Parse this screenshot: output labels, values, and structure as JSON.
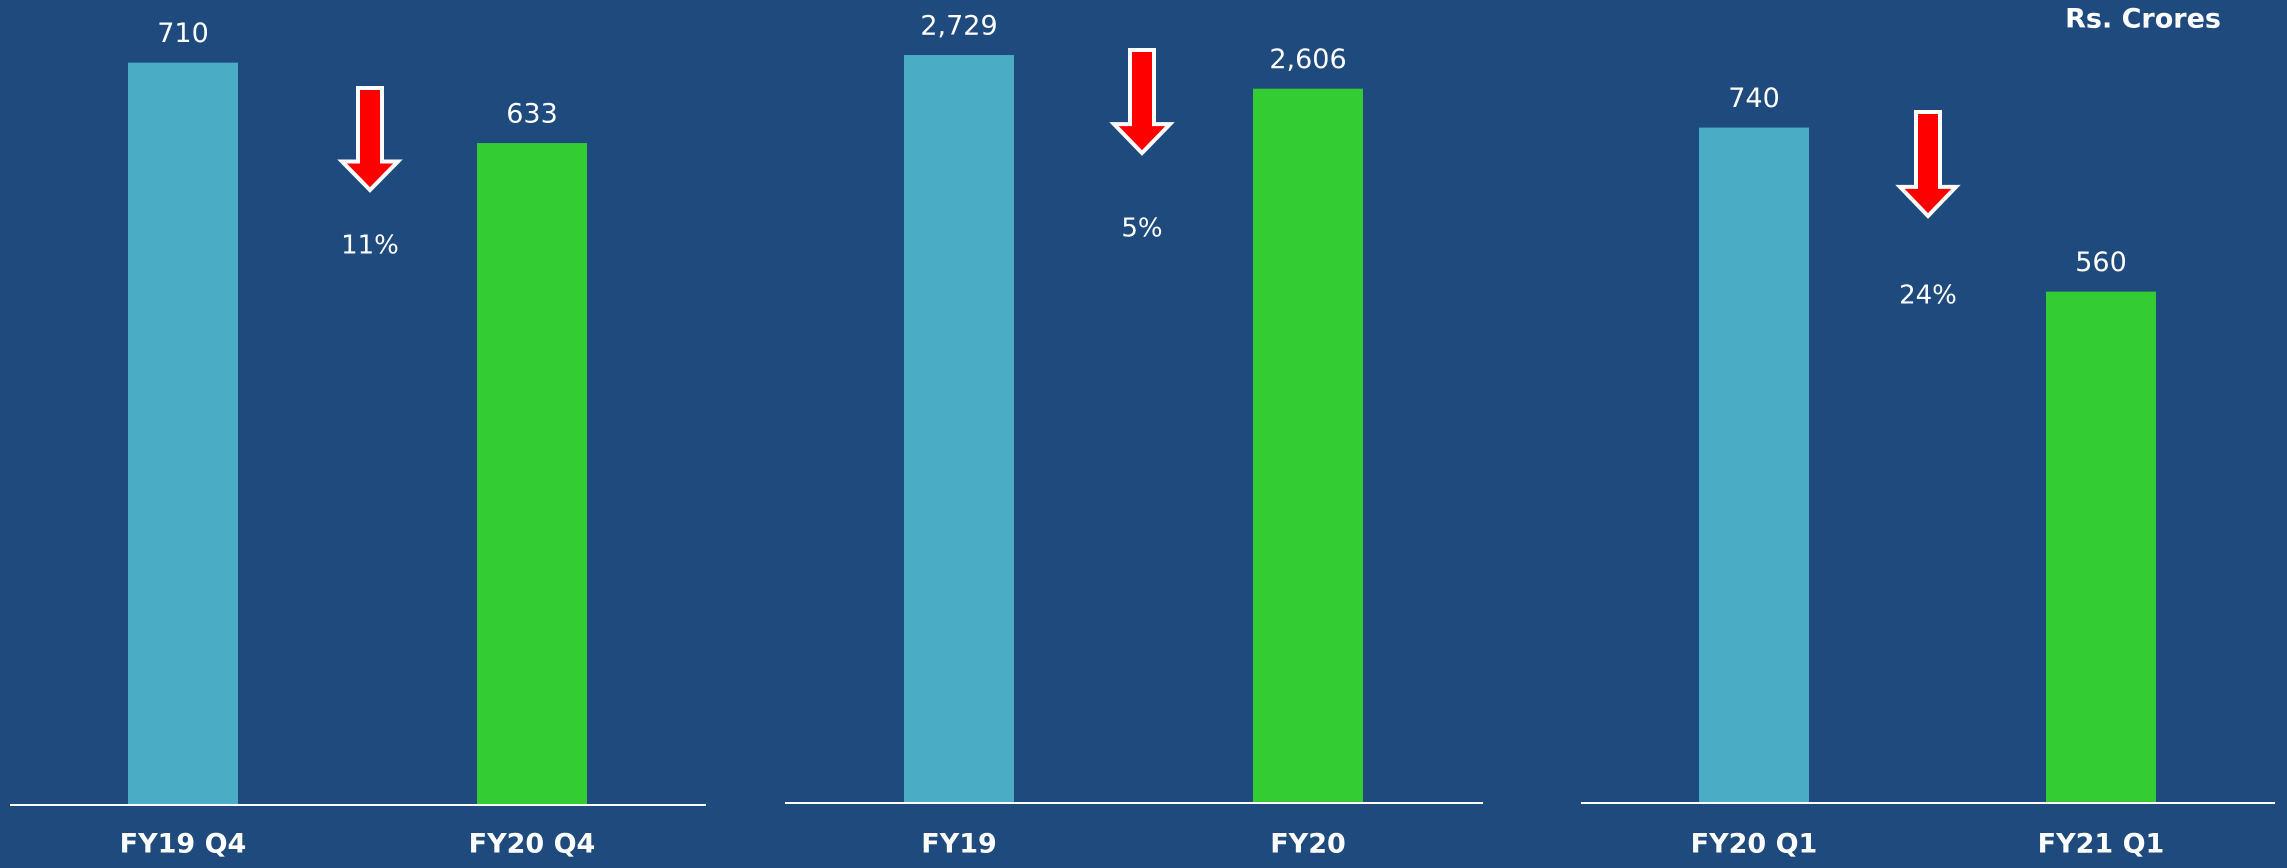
{
  "unit": "Rs. Crores",
  "chart_data": [
    {
      "type": "bar",
      "categories": [
        "FY19 Q4",
        "FY20 Q4"
      ],
      "values": [
        710,
        633
      ],
      "value_labels": [
        "710",
        "633"
      ],
      "colors": [
        "#4bacc6",
        "#33cc33"
      ],
      "ylim": [
        0,
        770
      ],
      "annotation": "11%"
    },
    {
      "type": "bar",
      "categories": [
        "FY19",
        "FY20"
      ],
      "values": [
        2729,
        2606
      ],
      "value_labels": [
        "2,729",
        "2,606"
      ],
      "colors": [
        "#4bacc6",
        "#33cc33"
      ],
      "ylim": [
        0,
        2930
      ],
      "annotation": "5%"
    },
    {
      "type": "bar",
      "categories": [
        "FY20 Q1",
        "FY21 Q1"
      ],
      "values": [
        740,
        560
      ],
      "value_labels": [
        "740",
        "560"
      ],
      "colors": [
        "#4bacc6",
        "#33cc33"
      ],
      "ylim": [
        0,
        880
      ],
      "annotation": "24%"
    }
  ]
}
